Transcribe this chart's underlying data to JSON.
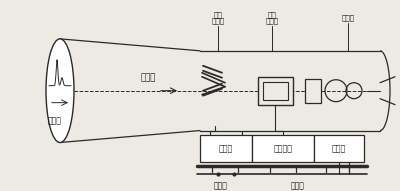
{
  "bg_color": "#ede9e3",
  "line_color": "#2a2a2a",
  "text_color": "#1a1a1a",
  "labels": {
    "screen": "荺光屏",
    "electron_beam": "电子束",
    "vertical_deflect_1": "垂直",
    "vertical_deflect_2": "偏转板",
    "horizontal_deflect_1": "水平",
    "horizontal_deflect_2": "偏转板",
    "electron_gun": "电子枪",
    "amplifier": "放大器",
    "sweep": "扫描装置",
    "stimulator": "刺激器",
    "injury": "损伤处",
    "nerve": "神经干"
  }
}
